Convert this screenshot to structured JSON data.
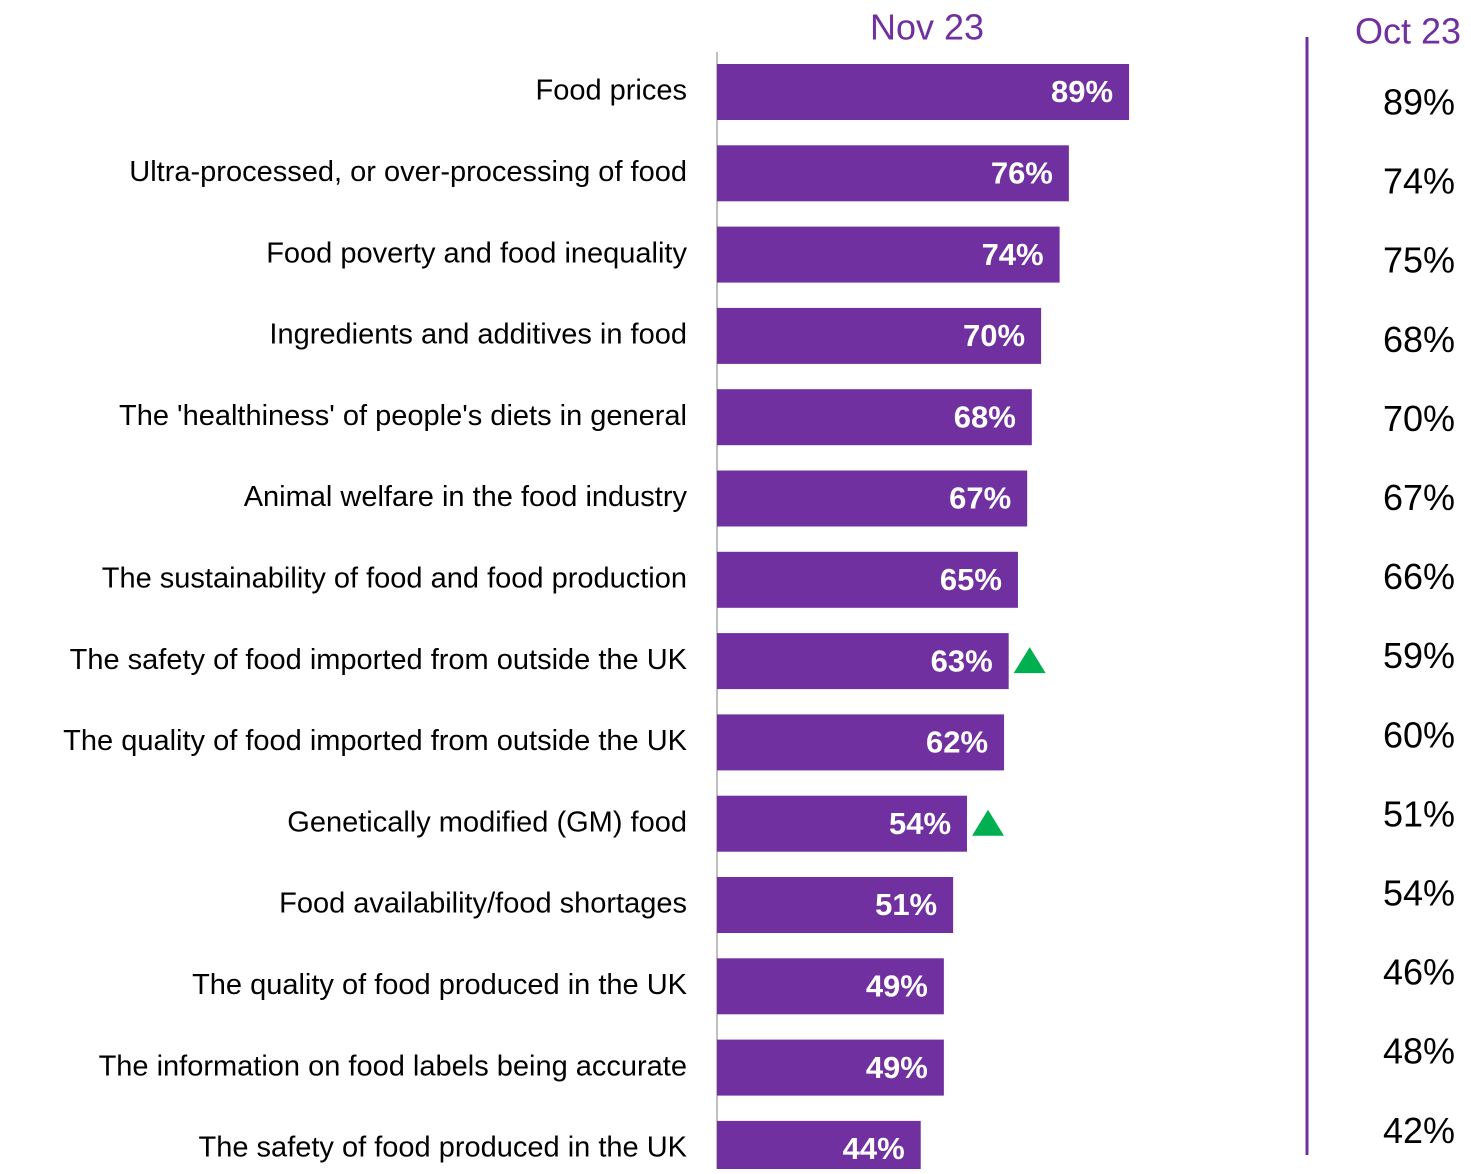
{
  "chart_data": {
    "type": "bar",
    "orientation": "horizontal",
    "categories": [
      "Food prices",
      "Ultra-processed, or over-processing of food",
      "Food poverty and food inequality",
      "Ingredients and additives in food",
      "The 'healthiness' of people's diets in general",
      "Animal welfare in the food industry",
      "The sustainability of food and food production",
      "The safety of food imported from outside the UK",
      "The quality of food imported from outside the UK",
      "Genetically modified (GM) food",
      "Food availability/food shortages",
      "The quality of food produced in the UK",
      "The information on food labels being accurate",
      "The safety of food produced in the UK"
    ],
    "series": [
      {
        "name": "Nov 23",
        "color": "#7030a0",
        "values": [
          89,
          76,
          74,
          70,
          68,
          67,
          65,
          63,
          62,
          54,
          51,
          49,
          49,
          44
        ],
        "value_labels": [
          "89%",
          "76%",
          "74%",
          "70%",
          "68%",
          "67%",
          "65%",
          "63%",
          "62%",
          "54%",
          "51%",
          "49%",
          "49%",
          "44%"
        ],
        "significant_increase": [
          false,
          false,
          false,
          false,
          false,
          false,
          false,
          true,
          false,
          true,
          false,
          false,
          false,
          false
        ]
      },
      {
        "name": "Oct 23",
        "values": [
          89,
          74,
          75,
          68,
          70,
          67,
          66,
          59,
          60,
          51,
          54,
          46,
          48,
          42
        ],
        "value_labels": [
          "89%",
          "74%",
          "75%",
          "68%",
          "70%",
          "67%",
          "66%",
          "59%",
          "60%",
          "51%",
          "54%",
          "46%",
          "48%",
          "42%"
        ]
      }
    ],
    "xlim": [
      0,
      100
    ],
    "significance_color": "#00b050"
  }
}
